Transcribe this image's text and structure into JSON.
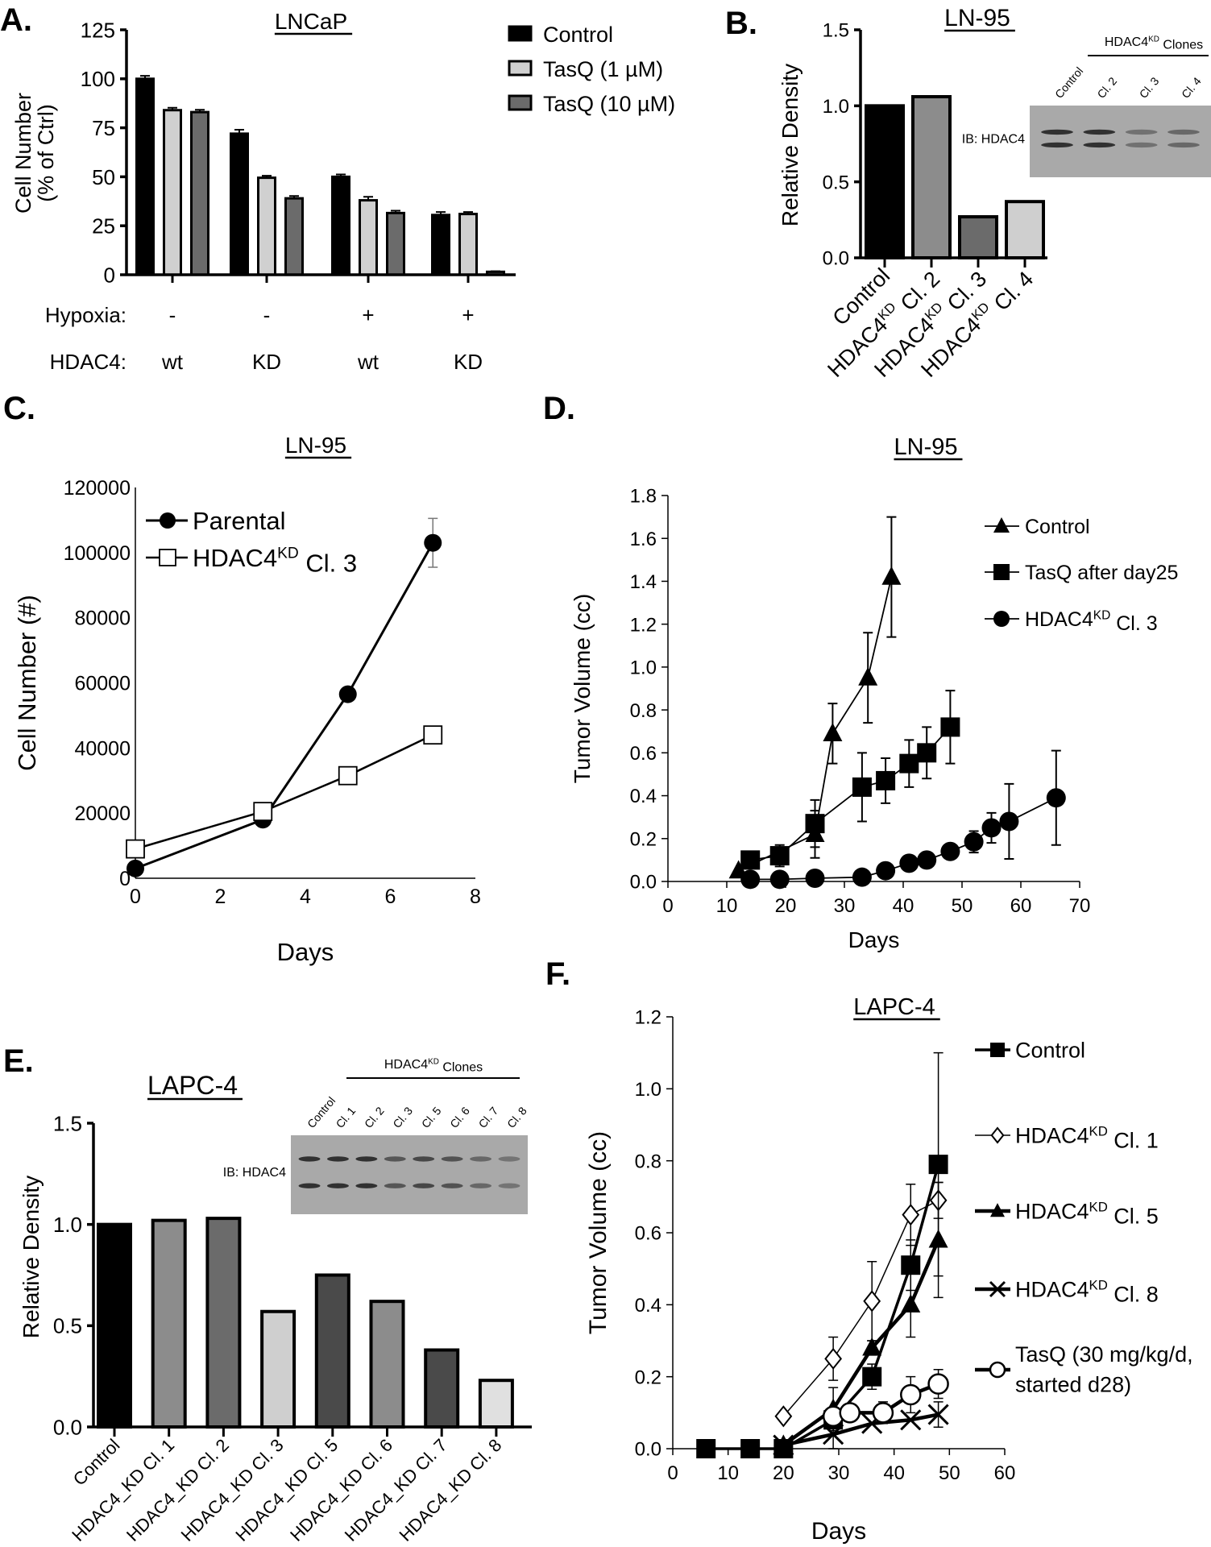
{
  "chart_data": [
    {
      "panel_label": "A.",
      "type": "bar",
      "title": "LNCaP",
      "ylabel_lines": [
        "Cell Number",
        "(% of Ctrl)"
      ],
      "ylim": [
        0,
        125
      ],
      "yticks": [
        "0",
        "25",
        "50",
        "75",
        "100",
        "125"
      ],
      "row_labels": {
        "hypoxia": "Hypoxia:",
        "hdac4": "HDAC4:"
      },
      "groups": [
        {
          "hypoxia": "-",
          "hdac4": "wt"
        },
        {
          "hypoxia": "-",
          "hdac4": "KD"
        },
        {
          "hypoxia": "+",
          "hdac4": "wt"
        },
        {
          "hypoxia": "+",
          "hdac4": "KD"
        }
      ],
      "legend": "top-right",
      "series": [
        {
          "name": "Control",
          "color": "#000000",
          "values": [
            100,
            72,
            50,
            30.5
          ],
          "errors": [
            1.5,
            2,
            1.2,
            1.5
          ]
        },
        {
          "name": "TasQ (1 µM)",
          "color": "#d0d0d0",
          "values": [
            84,
            49.5,
            38,
            31
          ],
          "errors": [
            1.2,
            1,
            1.8,
            1
          ]
        },
        {
          "name": "TasQ (10 µM)",
          "color": "#6b6b6b",
          "values": [
            83,
            39,
            31.5,
            1.5
          ],
          "errors": [
            1.2,
            1.2,
            1.2,
            0.3
          ]
        }
      ]
    },
    {
      "panel_label": "B.",
      "type": "bar",
      "title": "LN-95",
      "ylabel": "Relative Density",
      "ylim": [
        0,
        1.5
      ],
      "yticks": [
        "0.0",
        "0.5",
        "1.0",
        "1.5"
      ],
      "categories": [
        "Control",
        "HDAC4KD Cl. 2",
        "HDAC4KD Cl. 3",
        "HDAC4KD Cl. 4"
      ],
      "values": [
        1.0,
        1.06,
        0.27,
        0.37
      ],
      "colors": [
        "#000000",
        "#8c8c8c",
        "#6b6b6b",
        "#cfcfcf"
      ],
      "blot": {
        "antibody_label": "IB: HDAC4",
        "header": "HDAC4KD Clones",
        "lanes": [
          "Control",
          "Cl. 2",
          "Cl. 3",
          "Cl. 4"
        ]
      }
    },
    {
      "panel_label": "C.",
      "type": "line",
      "title": "LN-95",
      "xlabel": "Days",
      "ylabel": "Cell Number (#)",
      "xlim": [
        0,
        8
      ],
      "xticks": [
        "0",
        "2",
        "4",
        "6",
        "8"
      ],
      "ylim": [
        0,
        120000
      ],
      "yticks": [
        "0",
        "20000",
        "40000",
        "60000",
        "80000",
        "100000",
        "120000"
      ],
      "legend": "top-left",
      "series": [
        {
          "name": "Parental",
          "marker": "circle",
          "x": [
            0,
            3,
            5,
            7
          ],
          "y": [
            3000,
            18000,
            56500,
            103000
          ],
          "err": [
            0,
            0,
            0,
            7500
          ]
        },
        {
          "name": "HDAC4KD Cl. 3",
          "marker": "square-open",
          "x": [
            0,
            3,
            5,
            7
          ],
          "y": [
            9000,
            20500,
            31500,
            44000
          ],
          "err": [
            0,
            0,
            2000,
            1500
          ]
        }
      ]
    },
    {
      "panel_label": "D.",
      "type": "line",
      "title": "LN-95",
      "xlabel": "Days",
      "ylabel": "Tumor Volume (cc)",
      "xlim": [
        0,
        70
      ],
      "xticks": [
        "0",
        "10",
        "20",
        "30",
        "40",
        "50",
        "60",
        "70"
      ],
      "ylim": [
        0,
        1.8
      ],
      "yticks": [
        "0.0",
        "0.2",
        "0.4",
        "0.6",
        "0.8",
        "1.0",
        "1.2",
        "1.4",
        "1.6",
        "1.8"
      ],
      "legend": "top-right",
      "series": [
        {
          "name": "Control",
          "marker": "triangle",
          "x": [
            12,
            25,
            28,
            34,
            38
          ],
          "y": [
            0.05,
            0.22,
            0.69,
            0.95,
            1.42
          ],
          "err": [
            0,
            0.11,
            0.14,
            0.21,
            0.28
          ]
        },
        {
          "name": "TasQ after day25",
          "marker": "square",
          "x": [
            14,
            19,
            25,
            33,
            37,
            41,
            44,
            48
          ],
          "y": [
            0.1,
            0.12,
            0.27,
            0.44,
            0.47,
            0.55,
            0.6,
            0.72
          ],
          "err": [
            0,
            0.05,
            0.11,
            0.16,
            0.105,
            0.11,
            0.12,
            0.17
          ]
        },
        {
          "name": "HDAC4KD Cl. 3",
          "marker": "circle",
          "x": [
            14,
            19,
            25,
            33,
            37,
            41,
            44,
            48,
            52,
            55,
            58,
            66
          ],
          "y": [
            0.01,
            0.01,
            0.015,
            0.02,
            0.05,
            0.085,
            0.1,
            0.14,
            0.185,
            0.25,
            0.28,
            0.39
          ],
          "err": [
            0,
            0,
            0,
            0,
            0,
            0,
            0,
            0,
            0.05,
            0.07,
            0.175,
            0.22
          ]
        }
      ]
    },
    {
      "panel_label": "E.",
      "type": "bar",
      "title": "LAPC-4",
      "ylabel": "Relative Density",
      "ylim": [
        0,
        1.5
      ],
      "yticks": [
        "0.0",
        "0.5",
        "1.0",
        "1.5"
      ],
      "categories": [
        "Control",
        "HDAC4_KD Cl. 1",
        "HDAC4_KD Cl. 2",
        "HDAC4_KD Cl. 3",
        "HDAC4_KD Cl. 5",
        "HDAC4_KD Cl. 6",
        "HDAC4_KD Cl. 7",
        "HDAC4_KD Cl. 8"
      ],
      "values": [
        1.0,
        1.02,
        1.03,
        0.57,
        0.75,
        0.62,
        0.38,
        0.23
      ],
      "colors": [
        "#000000",
        "#8c8c8c",
        "#6b6b6b",
        "#cfcfcf",
        "#4a4a4a",
        "#8c8c8c",
        "#4a4a4a",
        "#e0e0e0"
      ],
      "blot": {
        "antibody_label": "IB: HDAC4",
        "header": "HDAC4KD Clones",
        "lanes": [
          "Control",
          "Cl. 1",
          "Cl. 2",
          "Cl. 3",
          "Cl. 5",
          "Cl. 6",
          "Cl. 7",
          "Cl. 8"
        ]
      }
    },
    {
      "panel_label": "F.",
      "type": "line",
      "title": "LAPC-4",
      "xlabel": "Days",
      "ylabel": "Tumor Volume (cc)",
      "xlim": [
        0,
        60
      ],
      "xticks": [
        "0",
        "10",
        "20",
        "30",
        "40",
        "50",
        "60"
      ],
      "ylim": [
        0,
        1.2
      ],
      "yticks": [
        "0.0",
        "0.2",
        "0.4",
        "0.6",
        "0.8",
        "1.0",
        "1.2"
      ],
      "legend": "right",
      "series": [
        {
          "name": "Control",
          "marker": "square",
          "x": [
            6,
            14,
            20,
            29,
            36,
            43,
            48
          ],
          "y": [
            0,
            0,
            0,
            0.08,
            0.2,
            0.51,
            0.79
          ],
          "err": [
            0,
            0,
            0,
            0,
            0.035,
            0.07,
            0.31
          ]
        },
        {
          "name": "HDAC4KD Cl. 1",
          "marker": "diamond-open",
          "x": [
            20,
            29,
            36,
            43,
            48
          ],
          "y": [
            0.09,
            0.25,
            0.41,
            0.65,
            0.69
          ],
          "err": [
            0,
            0.06,
            0.11,
            0.085,
            0.05
          ]
        },
        {
          "name": "HDAC4KD Cl. 5",
          "marker": "triangle",
          "x": [
            20,
            29,
            36,
            43,
            48
          ],
          "y": [
            0.01,
            0.11,
            0.28,
            0.4,
            0.58
          ],
          "err": [
            0,
            0.06,
            0.02,
            0.09,
            0.16
          ]
        },
        {
          "name": "HDAC4KD Cl. 8",
          "marker": "x",
          "x": [
            20,
            29,
            36,
            43,
            48
          ],
          "y": [
            0.01,
            0.04,
            0.07,
            0.08,
            0.095
          ],
          "err": [
            0,
            0.04,
            0,
            0,
            0.035
          ]
        },
        {
          "name_lines": [
            "TasQ (30 mg/kg/d,",
            "started d28)"
          ],
          "marker": "circle-open",
          "x": [
            29,
            32,
            38,
            43,
            48
          ],
          "y": [
            0.09,
            0.1,
            0.1,
            0.15,
            0.18
          ],
          "err": [
            0,
            0,
            0.03,
            0.05,
            0.04
          ]
        }
      ]
    }
  ]
}
